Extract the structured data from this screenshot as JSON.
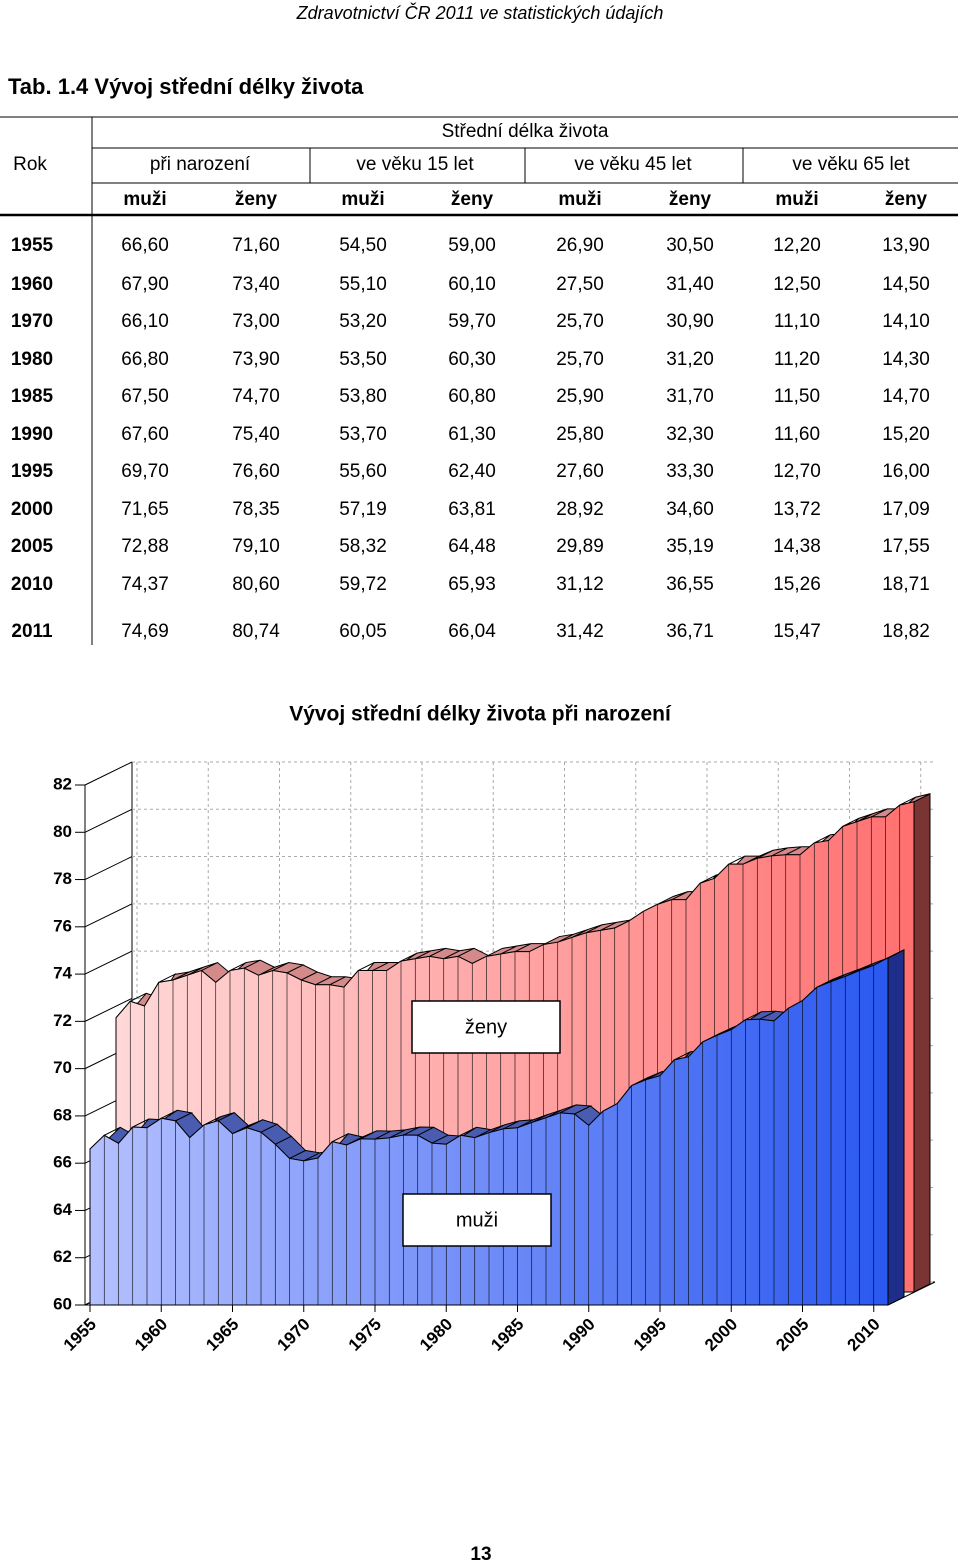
{
  "header": {
    "title": "Zdravotnictví ČR 2011 ve statistických údajích"
  },
  "table": {
    "caption": "Tab. 1.4  Vývoj střední délky života",
    "row_header": "Rok",
    "super_header": "Střední délka života",
    "groups": [
      "při narození",
      "ve věku 15 let",
      "ve věku 45 let",
      "ve věku 65 let"
    ],
    "subheaders": [
      "muži",
      "ženy",
      "muži",
      "ženy",
      "muži",
      "ženy",
      "muži",
      "ženy"
    ],
    "rows": [
      [
        "1955",
        "66,60",
        "71,60",
        "54,50",
        "59,00",
        "26,90",
        "30,50",
        "12,20",
        "13,90"
      ],
      [
        "1960",
        "67,90",
        "73,40",
        "55,10",
        "60,10",
        "27,50",
        "31,40",
        "12,50",
        "14,50"
      ],
      [
        "1970",
        "66,10",
        "73,00",
        "53,20",
        "59,70",
        "25,70",
        "30,90",
        "11,10",
        "14,10"
      ],
      [
        "1980",
        "66,80",
        "73,90",
        "53,50",
        "60,30",
        "25,70",
        "31,20",
        "11,20",
        "14,30"
      ],
      [
        "1985",
        "67,50",
        "74,70",
        "53,80",
        "60,80",
        "25,90",
        "31,70",
        "11,50",
        "14,70"
      ],
      [
        "1990",
        "67,60",
        "75,40",
        "53,70",
        "61,30",
        "25,80",
        "32,30",
        "11,60",
        "15,20"
      ],
      [
        "1995",
        "69,70",
        "76,60",
        "55,60",
        "62,40",
        "27,60",
        "33,30",
        "12,70",
        "16,00"
      ],
      [
        "2000",
        "71,65",
        "78,35",
        "57,19",
        "63,81",
        "28,92",
        "34,60",
        "13,72",
        "17,09"
      ],
      [
        "2005",
        "72,88",
        "79,10",
        "58,32",
        "64,48",
        "29,89",
        "35,19",
        "14,38",
        "17,55"
      ],
      [
        "2010",
        "74,37",
        "80,60",
        "59,72",
        "65,93",
        "31,12",
        "36,55",
        "15,26",
        "18,71"
      ],
      [
        "2011",
        "74,69",
        "80,74",
        "60,05",
        "66,04",
        "31,42",
        "36,71",
        "15,47",
        "18,82"
      ]
    ]
  },
  "chart_data": {
    "type": "area3d",
    "title": "Vývoj střední délky života při narození",
    "x": [
      1955,
      1956,
      1957,
      1958,
      1959,
      1960,
      1961,
      1962,
      1963,
      1964,
      1965,
      1966,
      1967,
      1968,
      1969,
      1970,
      1971,
      1972,
      1973,
      1974,
      1975,
      1976,
      1977,
      1978,
      1979,
      1980,
      1981,
      1982,
      1983,
      1984,
      1985,
      1986,
      1987,
      1988,
      1989,
      1990,
      1991,
      1992,
      1993,
      1994,
      1995,
      1996,
      1997,
      1998,
      1999,
      2000,
      2001,
      2002,
      2003,
      2004,
      2005,
      2006,
      2007,
      2008,
      2009,
      2010,
      2011
    ],
    "series": [
      {
        "name": "ženy",
        "color": "#ff7878",
        "values": [
          71.6,
          72.3,
          72.1,
          73.1,
          73.2,
          73.4,
          73.6,
          73.1,
          73.6,
          73.7,
          73.4,
          73.6,
          73.5,
          73.2,
          73.0,
          73.0,
          72.9,
          73.6,
          73.6,
          73.6,
          74.0,
          74.1,
          74.2,
          74.1,
          74.2,
          73.9,
          74.2,
          74.3,
          74.4,
          74.4,
          74.7,
          74.8,
          75.0,
          75.2,
          75.3,
          75.4,
          75.7,
          76.1,
          76.4,
          76.6,
          76.6,
          77.3,
          77.5,
          78.1,
          78.1,
          78.35,
          78.45,
          78.5,
          78.5,
          79.0,
          79.1,
          79.7,
          79.9,
          80.1,
          80.1,
          80.6,
          80.74
        ]
      },
      {
        "name": "muži",
        "color": "#3a62f5",
        "values": [
          66.6,
          67.18,
          66.84,
          67.53,
          67.5,
          67.9,
          67.79,
          67.08,
          67.62,
          67.8,
          67.25,
          67.5,
          67.31,
          66.8,
          66.2,
          66.1,
          66.22,
          66.91,
          66.77,
          67.03,
          67.02,
          67.07,
          67.19,
          67.18,
          66.85,
          66.8,
          67.18,
          67.08,
          67.29,
          67.45,
          67.5,
          67.72,
          67.92,
          68.13,
          68.08,
          67.6,
          68.2,
          68.52,
          69.28,
          69.53,
          69.7,
          70.37,
          70.5,
          71.13,
          71.41,
          71.65,
          72.07,
          72.09,
          72.02,
          72.55,
          72.88,
          73.44,
          73.68,
          73.9,
          74.15,
          74.37,
          74.69
        ]
      }
    ],
    "xlim": [
      1955,
      2011
    ],
    "xticks": [
      1955,
      1960,
      1965,
      1970,
      1975,
      1980,
      1985,
      1990,
      1995,
      2000,
      2005,
      2010
    ],
    "ylim": [
      60,
      82
    ],
    "yticks": [
      60,
      62,
      64,
      66,
      68,
      70,
      72,
      74,
      76,
      78,
      80,
      82
    ],
    "grid": true
  },
  "footer": {
    "page": "13"
  }
}
